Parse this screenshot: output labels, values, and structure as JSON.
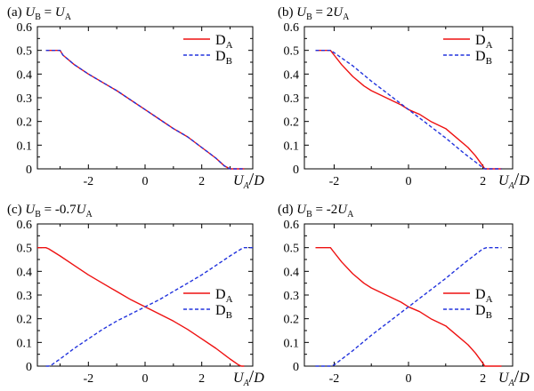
{
  "colors": {
    "series_a": "#ee1111",
    "series_b": "#2233dd"
  },
  "chart_data": [
    {
      "type": "line",
      "title": "(a) U_B = U_A",
      "title_parts": {
        "prefix": "(a)",
        "lhs": "U",
        "lhs_sub": "B",
        "rhs": "U",
        "rhs_sub": "A"
      },
      "xlabel": "U_A/D",
      "xlim": [
        -3.8,
        3.8
      ],
      "ylim": [
        0,
        0.6
      ],
      "xticks": [
        -2,
        0,
        2
      ],
      "xtick_labels": [
        "-2",
        "0",
        "2"
      ],
      "yticks": [
        0,
        0.1,
        0.2,
        0.3,
        0.4,
        0.5,
        0.6
      ],
      "ytick_labels": [
        "0",
        "0.1",
        "0.2",
        "0.3",
        "0.4",
        "0.5",
        "0.6"
      ],
      "legend_position": "top-right",
      "series": [
        {
          "name": "D_A",
          "legend": "DA",
          "style": "solid",
          "x": [
            -3.5,
            -3.0,
            -2.9,
            -2.5,
            -2.0,
            -1.5,
            -1.0,
            -0.5,
            0,
            0.5,
            1.0,
            1.5,
            2.0,
            2.5,
            2.8,
            3.0,
            3.2,
            3.5
          ],
          "y": [
            0.5,
            0.5,
            0.48,
            0.44,
            0.4,
            0.365,
            0.33,
            0.29,
            0.25,
            0.21,
            0.17,
            0.135,
            0.09,
            0.045,
            0.012,
            0.0,
            0.0,
            0.0
          ]
        },
        {
          "name": "D_B",
          "legend": "DB",
          "style": "dashed",
          "x": [
            -3.5,
            -3.0,
            -2.9,
            -2.5,
            -2.0,
            -1.5,
            -1.0,
            -0.5,
            0,
            0.5,
            1.0,
            1.5,
            2.0,
            2.5,
            2.8,
            3.0,
            3.2,
            3.5
          ],
          "y": [
            0.5,
            0.5,
            0.48,
            0.44,
            0.4,
            0.365,
            0.33,
            0.29,
            0.25,
            0.21,
            0.17,
            0.135,
            0.09,
            0.045,
            0.012,
            0.0,
            0.0,
            0.0
          ]
        }
      ]
    },
    {
      "type": "line",
      "title": "(b) U_B = 2U_A",
      "title_parts": {
        "prefix": "(b)",
        "lhs": "U",
        "lhs_sub": "B",
        "rhs": "2U",
        "rhs_sub": "A"
      },
      "xlabel": "U_A/D",
      "xlim": [
        -2.8,
        2.8
      ],
      "ylim": [
        0,
        0.6
      ],
      "xticks": [
        -2,
        0,
        2
      ],
      "xtick_labels": [
        "-2",
        "0",
        "2"
      ],
      "yticks": [
        0,
        0.1,
        0.2,
        0.3,
        0.4,
        0.5,
        0.6
      ],
      "ytick_labels": [
        "0",
        "0.1",
        "0.2",
        "0.3",
        "0.4",
        "0.5",
        "0.6"
      ],
      "legend_position": "top-right",
      "series": [
        {
          "name": "D_A",
          "legend": "DA",
          "style": "solid",
          "x": [
            -2.5,
            -2.1,
            -2.0,
            -1.8,
            -1.5,
            -1.2,
            -1.0,
            -0.6,
            -0.2,
            0,
            0.3,
            0.6,
            1.0,
            1.3,
            1.6,
            1.8,
            2.0,
            2.05,
            2.5
          ],
          "y": [
            0.5,
            0.5,
            0.48,
            0.44,
            0.39,
            0.35,
            0.33,
            0.3,
            0.27,
            0.25,
            0.23,
            0.2,
            0.17,
            0.13,
            0.09,
            0.055,
            0.012,
            0.0,
            0.0
          ]
        },
        {
          "name": "D_B",
          "legend": "DB",
          "style": "dashed",
          "x": [
            -2.5,
            -2.1,
            -2.0,
            -1.5,
            -1.0,
            -0.5,
            0,
            0.5,
            1.0,
            1.5,
            2.0,
            2.05,
            2.5
          ],
          "y": [
            0.5,
            0.5,
            0.49,
            0.435,
            0.37,
            0.31,
            0.25,
            0.19,
            0.13,
            0.065,
            0.005,
            0.0,
            0.0
          ]
        }
      ]
    },
    {
      "type": "line",
      "title": "(c) U_B = -0.7U_A",
      "title_parts": {
        "prefix": "(c)",
        "lhs": "U",
        "lhs_sub": "B",
        "rhs": "-0.7U",
        "rhs_sub": "A"
      },
      "xlabel": "U_A/D",
      "xlim": [
        -3.8,
        3.8
      ],
      "ylim": [
        0,
        0.6
      ],
      "xticks": [
        -2,
        0,
        2
      ],
      "xtick_labels": [
        "-2",
        "0",
        "2"
      ],
      "yticks": [
        0,
        0.1,
        0.2,
        0.3,
        0.4,
        0.5,
        0.6
      ],
      "ytick_labels": [
        "0",
        "0.1",
        "0.2",
        "0.3",
        "0.4",
        "0.5",
        "0.6"
      ],
      "legend_position": "center-right",
      "series": [
        {
          "name": "D_A",
          "legend": "DA",
          "style": "solid",
          "x": [
            -3.8,
            -3.5,
            -3.4,
            -3.0,
            -2.5,
            -2.0,
            -1.5,
            -1.0,
            -0.5,
            0,
            0.5,
            1.0,
            1.5,
            2.0,
            2.5,
            3.0,
            3.3,
            3.4,
            3.5
          ],
          "y": [
            0.5,
            0.5,
            0.495,
            0.465,
            0.425,
            0.385,
            0.35,
            0.315,
            0.28,
            0.25,
            0.22,
            0.19,
            0.155,
            0.115,
            0.075,
            0.03,
            0.005,
            0.0,
            0.0
          ]
        },
        {
          "name": "D_B",
          "legend": "DB",
          "style": "dashed",
          "x": [
            -3.5,
            -3.4,
            -3.3,
            -3.0,
            -2.5,
            -2.0,
            -1.5,
            -1.0,
            -0.5,
            0,
            0.5,
            1.0,
            1.5,
            2.0,
            2.5,
            3.0,
            3.4,
            3.5,
            3.8
          ],
          "y": [
            0.0,
            0.0,
            0.005,
            0.03,
            0.075,
            0.115,
            0.155,
            0.19,
            0.22,
            0.25,
            0.28,
            0.315,
            0.35,
            0.385,
            0.425,
            0.465,
            0.495,
            0.5,
            0.5
          ]
        }
      ]
    },
    {
      "type": "line",
      "title": "(d) U_B = -2U_A",
      "title_parts": {
        "prefix": "(d)",
        "lhs": "U",
        "lhs_sub": "B",
        "rhs": "-2U",
        "rhs_sub": "A"
      },
      "xlabel": "U_A/D",
      "xlim": [
        -2.8,
        2.8
      ],
      "ylim": [
        0,
        0.6
      ],
      "xticks": [
        -2,
        0,
        2
      ],
      "xtick_labels": [
        "-2",
        "0",
        "2"
      ],
      "yticks": [
        0,
        0.1,
        0.2,
        0.3,
        0.4,
        0.5,
        0.6
      ],
      "ytick_labels": [
        "0",
        "0.1",
        "0.2",
        "0.3",
        "0.4",
        "0.5",
        "0.6"
      ],
      "legend_position": "center-right",
      "series": [
        {
          "name": "D_A",
          "legend": "DA",
          "style": "solid",
          "x": [
            -2.5,
            -2.1,
            -2.0,
            -1.8,
            -1.5,
            -1.2,
            -1.0,
            -0.6,
            -0.2,
            0,
            0.3,
            0.6,
            1.0,
            1.3,
            1.6,
            1.8,
            2.0,
            2.05,
            2.5
          ],
          "y": [
            0.5,
            0.5,
            0.48,
            0.44,
            0.39,
            0.35,
            0.33,
            0.3,
            0.27,
            0.25,
            0.23,
            0.2,
            0.17,
            0.13,
            0.09,
            0.055,
            0.012,
            0.0,
            0.0
          ]
        },
        {
          "name": "D_B",
          "legend": "DB",
          "style": "dashed",
          "x": [
            -2.5,
            -2.1,
            -2.0,
            -1.5,
            -1.0,
            -0.5,
            0,
            0.5,
            1.0,
            1.5,
            2.0,
            2.1,
            2.5
          ],
          "y": [
            0.0,
            0.0,
            0.005,
            0.065,
            0.13,
            0.19,
            0.25,
            0.31,
            0.37,
            0.435,
            0.495,
            0.5,
            0.5
          ]
        }
      ]
    }
  ]
}
